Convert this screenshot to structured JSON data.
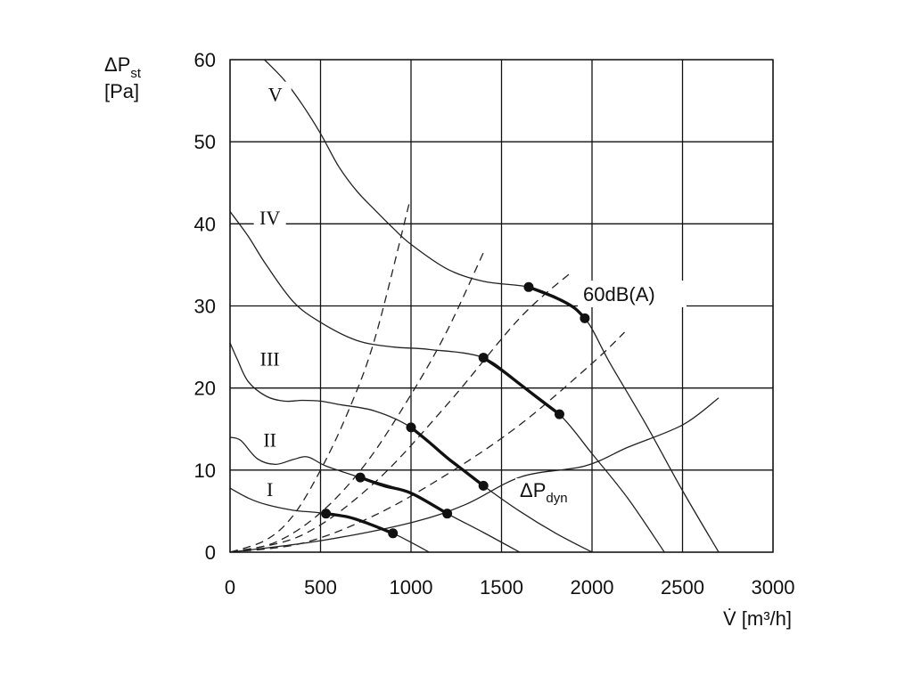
{
  "chart_data": {
    "type": "line",
    "title": "",
    "xlabel": "V̇ [m³/h]",
    "ylabel_main": "ΔP",
    "ylabel_sub": "st",
    "ylabel_unit": "[Pa]",
    "xlim": [
      0,
      3000
    ],
    "ylim": [
      0,
      60
    ],
    "xticks": [
      0,
      500,
      1000,
      1500,
      2000,
      2500,
      3000
    ],
    "yticks": [
      0,
      10,
      20,
      30,
      40,
      50,
      60
    ],
    "grid": true,
    "series": [
      {
        "name": "I",
        "points": [
          [
            0,
            7.8
          ],
          [
            100,
            6.6
          ],
          [
            200,
            5.8
          ],
          [
            350,
            5.1
          ],
          [
            450,
            4.9
          ],
          [
            530,
            4.7
          ],
          [
            650,
            4.3
          ],
          [
            750,
            3.6
          ],
          [
            900,
            2.3
          ],
          [
            1000,
            1.2
          ],
          [
            1100,
            0
          ]
        ]
      },
      {
        "name": "II",
        "points": [
          [
            0,
            14
          ],
          [
            60,
            13.6
          ],
          [
            150,
            11.4
          ],
          [
            250,
            10.7
          ],
          [
            350,
            11.3
          ],
          [
            430,
            11.6
          ],
          [
            530,
            10.5
          ],
          [
            720,
            9.1
          ],
          [
            1000,
            7.2
          ],
          [
            1200,
            4.7
          ],
          [
            1400,
            2.4
          ],
          [
            1600,
            0
          ]
        ]
      },
      {
        "name": "III",
        "points": [
          [
            0,
            25.5
          ],
          [
            40,
            23.5
          ],
          [
            100,
            20.8
          ],
          [
            200,
            19
          ],
          [
            300,
            18.4
          ],
          [
            400,
            18.5
          ],
          [
            500,
            18.4
          ],
          [
            600,
            18
          ],
          [
            800,
            17.2
          ],
          [
            1000,
            15.2
          ],
          [
            1200,
            11.5
          ],
          [
            1400,
            8.1
          ],
          [
            1600,
            5
          ],
          [
            1800,
            2.3
          ],
          [
            2000,
            0
          ]
        ]
      },
      {
        "name": "IV",
        "points": [
          [
            0,
            41.5
          ],
          [
            100,
            38.5
          ],
          [
            200,
            35
          ],
          [
            350,
            30.5
          ],
          [
            500,
            28
          ],
          [
            700,
            25.8
          ],
          [
            900,
            25
          ],
          [
            1100,
            24.7
          ],
          [
            1400,
            23.7
          ],
          [
            1600,
            20.5
          ],
          [
            1820,
            16.8
          ],
          [
            2000,
            12
          ],
          [
            2200,
            6.5
          ],
          [
            2400,
            0
          ]
        ]
      },
      {
        "name": "V",
        "points": [
          [
            190,
            60
          ],
          [
            300,
            57.5
          ],
          [
            400,
            54.5
          ],
          [
            500,
            51
          ],
          [
            600,
            47
          ],
          [
            700,
            44
          ],
          [
            800,
            41.7
          ],
          [
            900,
            39.5
          ],
          [
            1000,
            37.5
          ],
          [
            1200,
            34.5
          ],
          [
            1400,
            33
          ],
          [
            1650,
            32.3
          ],
          [
            1800,
            31
          ],
          [
            1960,
            28.5
          ],
          [
            2100,
            23
          ],
          [
            2300,
            15.5
          ],
          [
            2500,
            7.5
          ],
          [
            2700,
            0
          ]
        ]
      }
    ],
    "system_curves": [
      {
        "points": [
          [
            0,
            0
          ],
          [
            200,
            1.5
          ],
          [
            350,
            4.5
          ],
          [
            500,
            10
          ],
          [
            650,
            17
          ],
          [
            800,
            26
          ],
          [
            990,
            42.5
          ]
        ]
      },
      {
        "points": [
          [
            0,
            0
          ],
          [
            250,
            1.2
          ],
          [
            500,
            4.8
          ],
          [
            750,
            10.8
          ],
          [
            1000,
            19.2
          ],
          [
            1200,
            27
          ],
          [
            1400,
            36.5
          ]
        ]
      },
      {
        "points": [
          [
            0,
            0
          ],
          [
            400,
            2.1
          ],
          [
            800,
            8.5
          ],
          [
            1200,
            18
          ],
          [
            1600,
            28.5
          ],
          [
            1880,
            34
          ]
        ]
      },
      {
        "points": [
          [
            0,
            0
          ],
          [
            400,
            1.1
          ],
          [
            800,
            4.5
          ],
          [
            1200,
            9.5
          ],
          [
            1600,
            15.5
          ],
          [
            2000,
            23
          ],
          [
            2180,
            26.8
          ]
        ]
      }
    ],
    "dyn_curve": {
      "name": "ΔPdyn",
      "points": [
        [
          0,
          0
        ],
        [
          500,
          1.4
        ],
        [
          1000,
          3.6
        ],
        [
          1300,
          5.8
        ],
        [
          1610,
          9.2
        ],
        [
          1960,
          10.5
        ],
        [
          2200,
          12.8
        ],
        [
          2500,
          15.5
        ],
        [
          2700,
          18.8
        ]
      ]
    },
    "sound_level_segments": [
      {
        "label": "60dB(A)",
        "points": [
          [
            530,
            4.7
          ],
          [
            650,
            4.3
          ],
          [
            750,
            3.6
          ],
          [
            900,
            2.3
          ]
        ]
      },
      {
        "points": [
          [
            720,
            9.1
          ],
          [
            850,
            8.1
          ],
          [
            1000,
            7.2
          ],
          [
            1200,
            4.7
          ]
        ]
      },
      {
        "points": [
          [
            1000,
            15.2
          ],
          [
            1100,
            13.4
          ],
          [
            1200,
            11.5
          ],
          [
            1300,
            9.8
          ],
          [
            1400,
            8.1
          ]
        ]
      },
      {
        "points": [
          [
            1400,
            23.7
          ],
          [
            1500,
            22.2
          ],
          [
            1600,
            20.5
          ],
          [
            1700,
            18.8
          ],
          [
            1820,
            16.8
          ]
        ]
      },
      {
        "points": [
          [
            1650,
            32.3
          ],
          [
            1800,
            31
          ],
          [
            1900,
            29.8
          ],
          [
            1960,
            28.5
          ]
        ]
      }
    ],
    "curve_labels": [
      {
        "text": "V",
        "x": 250,
        "y": 55.7
      },
      {
        "text": "IV",
        "x": 220,
        "y": 40.7
      },
      {
        "text": "III",
        "x": 220,
        "y": 23.5
      },
      {
        "text": "II",
        "x": 220,
        "y": 13.6
      },
      {
        "text": "I",
        "x": 220,
        "y": 7.6
      }
    ],
    "annotations": [
      {
        "id": "sound",
        "text": "60dB(A)"
      },
      {
        "id": "dyn_main",
        "text": "ΔP"
      },
      {
        "id": "dyn_sub",
        "text": "dyn"
      }
    ]
  }
}
